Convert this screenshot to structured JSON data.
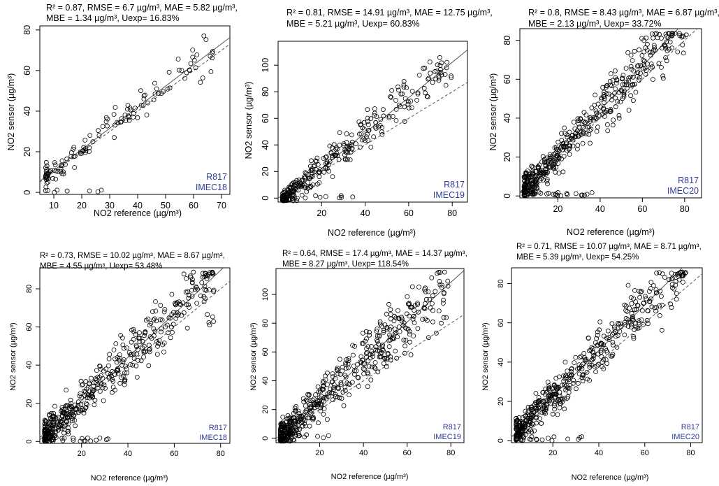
{
  "chart_data": [
    {
      "type": "scatter",
      "stats_line1": "R² = 0.87, RMSE = 6.7 µg/m³, MAE = 5.82 µg/m³,",
      "stats_line2": "MBE = 1.34 µg/m³, Uexp= 16.83%",
      "xlabel": "NO2 reference (µg/m³)",
      "ylabel": "NO2 sensor (µg/m³)",
      "xlim": [
        5,
        73
      ],
      "ylim": [
        -1,
        82
      ],
      "xticks": [
        10,
        20,
        30,
        40,
        50,
        60,
        70
      ],
      "yticks": [
        0,
        20,
        40,
        60,
        80
      ],
      "tag_line1": "R817",
      "tag_line2": "IMEC18",
      "fit": {
        "slope": 1.04,
        "intercept": 0.35
      },
      "n_points": 140,
      "noise": 4.5,
      "color_tag": "#2d3b9a"
    },
    {
      "type": "scatter",
      "stats_line1": "R² = 0.81, RMSE = 14.91 µg/m³, MAE = 12.75 µg/m³,",
      "stats_line2": "MBE = 5.21 µg/m³, Uexp= 60.83%",
      "xlabel": "NO2 reference (µg/m³)",
      "ylabel": "NO2 sensor (µg/m³)",
      "xlim": [
        0,
        87
      ],
      "ylim": [
        -3,
        118
      ],
      "xticks": [
        20,
        40,
        60,
        80
      ],
      "yticks": [
        0,
        20,
        40,
        60,
        80,
        100
      ],
      "tag_line1": "R817",
      "tag_line2": "IMEC19",
      "fit": {
        "slope": 1.33,
        "intercept": -4.2
      },
      "n_points": 320,
      "noise": 8.0,
      "color_tag": "#2d3b9a"
    },
    {
      "type": "scatter",
      "stats_line1": "R² = 0.8, RMSE = 8.43 µg/m³, MAE = 6.87 µg/m³,",
      "stats_line2": "MBE = 2.13 µg/m³, Uexp= 33.72%",
      "xlabel": "NO2 reference (µg/m³)",
      "ylabel": "NO2 sensor (µg/m³)",
      "xlim": [
        2,
        88
      ],
      "ylim": [
        -1,
        86
      ],
      "xticks": [
        20,
        40,
        60,
        80
      ],
      "yticks": [
        0,
        20,
        40,
        60,
        80
      ],
      "tag_line1": "R817",
      "tag_line2": "IMEC20",
      "fit": {
        "slope": 1.13,
        "intercept": -1.0
      },
      "n_points": 480,
      "noise": 6.5,
      "color_tag": "#2d3b9a"
    },
    {
      "type": "scatter",
      "stats_line1": "R² = 0.73, RMSE = 10.02 µg/m³, MAE = 8.67 µg/m³,",
      "stats_line2": "MBE = 4.55 µg/m³, Uexp= 53.48%",
      "xlabel": "NO2 reference (µg/m³)",
      "ylabel": "NO2 sensor (µg/m³)",
      "xlim": [
        2,
        84
      ],
      "ylim": [
        -1,
        91
      ],
      "xticks": [
        20,
        40,
        60,
        80
      ],
      "yticks": [
        0,
        20,
        40,
        60,
        80
      ],
      "tag_line1": "R817",
      "tag_line2": "IMEC18",
      "fit": {
        "slope": 1.14,
        "intercept": -1.5
      },
      "n_points": 480,
      "noise": 7.5,
      "color_tag": "#2d3b9a"
    },
    {
      "type": "scatter",
      "stats_line1": "R² = 0.64, RMSE = 17.4 µg/m³, MAE = 14.37 µg/m³,",
      "stats_line2": "MBE = 8.27 µg/m³, Uexp= 118.54%",
      "xlabel": "NO2 reference (µg/m³)",
      "ylabel": "NO2 sensor (µg/m³)",
      "xlim": [
        0,
        86
      ],
      "ylim": [
        -3,
        118
      ],
      "xticks": [
        20,
        40,
        60,
        80
      ],
      "yticks": [
        0,
        20,
        40,
        60,
        80,
        100
      ],
      "tag_line1": "R817",
      "tag_line2": "IMEC19",
      "fit": {
        "slope": 1.38,
        "intercept": -2.0
      },
      "n_points": 520,
      "noise": 10.5,
      "color_tag": "#2d3b9a"
    },
    {
      "type": "scatter",
      "stats_line1": "R² = 0.71, RMSE = 10.07 µg/m³, MAE = 8.71 µg/m³,",
      "stats_line2": "MBE = 5.39 µg/m³, Uexp= 54.25%",
      "xlabel": "NO2 reference (µg/m³)",
      "ylabel": "NO2 sensor (µg/m³)",
      "xlim": [
        2,
        85
      ],
      "ylim": [
        -1,
        88
      ],
      "xticks": [
        20,
        40,
        60,
        80
      ],
      "yticks": [
        0,
        20,
        40,
        60,
        80
      ],
      "tag_line1": "R817",
      "tag_line2": "IMEC20",
      "fit": {
        "slope": 1.16,
        "intercept": -0.5
      },
      "n_points": 500,
      "noise": 7.0,
      "color_tag": "#2d3b9a"
    }
  ]
}
